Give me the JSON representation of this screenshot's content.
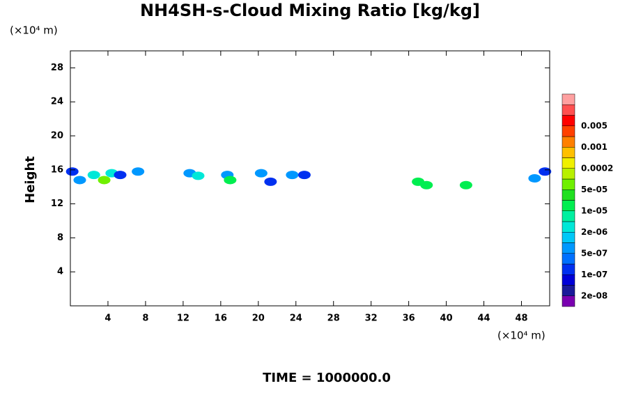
{
  "chart_data": {
    "type": "contour",
    "title": "NH4SH-s-Cloud Mixing Ratio [kg/kg]",
    "y_unit_label": "(×10⁴ m)",
    "x_unit_label": "(×10⁴ m)",
    "ylabel": "Height",
    "footer": "TIME = 1000000.0",
    "xlim": [
      0,
      51
    ],
    "ylim": [
      0,
      30
    ],
    "xticks": [
      4,
      8,
      12,
      16,
      20,
      24,
      28,
      32,
      36,
      40,
      44,
      48
    ],
    "yticks": [
      4,
      8,
      12,
      16,
      20,
      24,
      28
    ],
    "x": [
      0.2,
      1,
      2.5,
      3.6,
      4.4,
      5.3,
      7.2,
      12.7,
      13.6,
      16.7,
      17,
      20.3,
      21.3,
      23.6,
      24.9,
      37,
      37.9,
      42.1,
      49.4,
      50.5
    ],
    "y": [
      15.8,
      14.8,
      15.4,
      14.8,
      15.6,
      15.4,
      15.8,
      15.6,
      15.3,
      15.4,
      14.8,
      15.6,
      14.6,
      15.4,
      15.4,
      14.6,
      14.2,
      14.2,
      15,
      15.8
    ],
    "values": [
      1e-07,
      5e-07,
      2e-06,
      5e-05,
      2e-06,
      1e-07,
      5e-07,
      5e-07,
      2e-06,
      1e-06,
      1e-05,
      5e-07,
      2e-07,
      5e-07,
      2e-07,
      1e-05,
      2e-05,
      2e-05,
      5e-07,
      1e-07
    ],
    "colorbar": {
      "colors": [
        "#7a00b0",
        "#1a1a9a",
        "#0000d8",
        "#0030f0",
        "#0070ff",
        "#0098ff",
        "#00c8f8",
        "#00e8d8",
        "#00f0a0",
        "#00ee50",
        "#20e020",
        "#70f000",
        "#b8f000",
        "#f0f000",
        "#ffc000",
        "#ff8000",
        "#ff4000",
        "#ff0000"
      ],
      "top_colors": [
        "#ff5050",
        "#ffa0a0"
      ],
      "levels": [
        {
          "value": 2e-08,
          "label": "2e-08"
        },
        {
          "value": 1e-07,
          "label": "1e-07"
        },
        {
          "value": 5e-07,
          "label": "5e-07"
        },
        {
          "value": 2e-06,
          "label": "2e-06"
        },
        {
          "value": 1e-05,
          "label": "1e-05"
        },
        {
          "value": 5e-05,
          "label": "5e-05"
        },
        0.0002,
        0.001,
        0.005
      ]
    }
  }
}
